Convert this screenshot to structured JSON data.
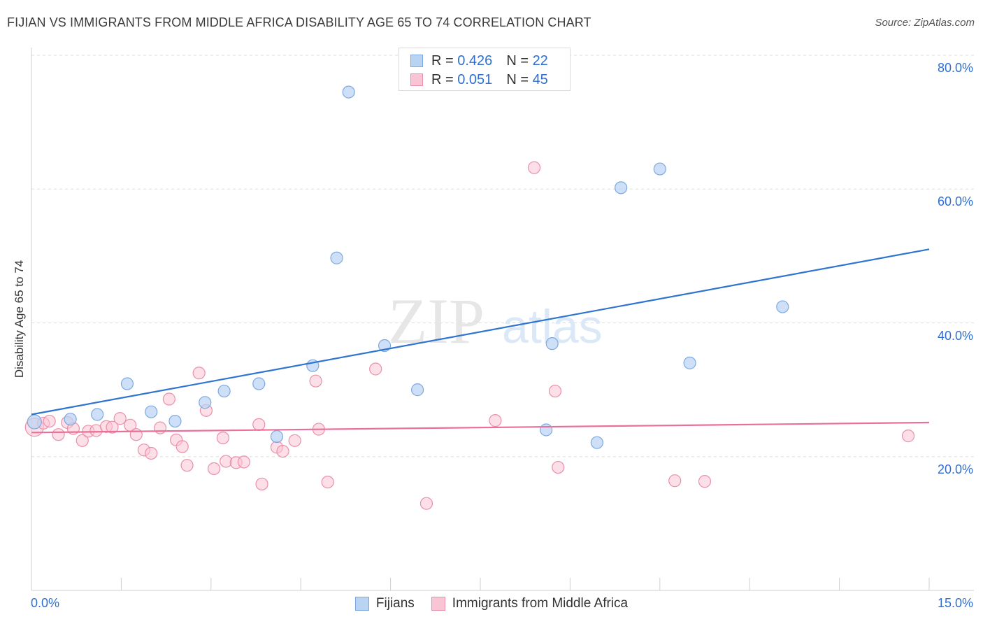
{
  "header": {
    "title": "FIJIAN VS IMMIGRANTS FROM MIDDLE AFRICA DISABILITY AGE 65 TO 74 CORRELATION CHART",
    "source": "Source: ZipAtlas.com"
  },
  "watermark": {
    "zip": "ZIP",
    "atlas": "atlas"
  },
  "legend_top": {
    "rows": [
      {
        "r_label": "R =",
        "r_value": "0.426",
        "n_label": "N =",
        "n_value": "22"
      },
      {
        "r_label": "R =",
        "r_value": "0.051",
        "n_label": "N =",
        "n_value": "45"
      }
    ]
  },
  "legend_bottom": {
    "items": [
      "Fijians",
      "Immigrants from Middle Africa"
    ]
  },
  "colors": {
    "series_a_fill": "#b9d3f3",
    "series_a_stroke": "#7ea8e0",
    "series_a_line": "#2f74d0",
    "series_b_fill": "#f9c4d4",
    "series_b_stroke": "#eb8fab",
    "series_b_line": "#e8709a",
    "accent_text": "#2f6fd0",
    "grid": "#dddddd"
  },
  "chart_data": {
    "type": "scatter",
    "title": "FIJIAN VS IMMIGRANTS FROM MIDDLE AFRICA DISABILITY AGE 65 TO 74 CORRELATION CHART",
    "xlabel": "",
    "ylabel": "Disability Age 65 to 74",
    "xlim": [
      0,
      15
    ],
    "ylim": [
      0,
      85
    ],
    "x_tick_labels": [
      "0.0%",
      "15.0%"
    ],
    "y_ticks": [
      20,
      40,
      60,
      80
    ],
    "y_tick_labels": [
      "20.0%",
      "40.0%",
      "60.0%",
      "80.0%"
    ],
    "grid": true,
    "legend_position": "top-center",
    "series": [
      {
        "name": "Fijians",
        "r": 0.426,
        "n": 22,
        "trend": [
          [
            0,
            26.3
          ],
          [
            15,
            51.0
          ]
        ],
        "points": [
          [
            0.05,
            25.2
          ],
          [
            0.65,
            25.6
          ],
          [
            1.1,
            26.3
          ],
          [
            1.6,
            30.9
          ],
          [
            2.0,
            26.7
          ],
          [
            2.4,
            25.3
          ],
          [
            2.9,
            28.1
          ],
          [
            3.22,
            29.8
          ],
          [
            3.8,
            30.9
          ],
          [
            4.1,
            23.0
          ],
          [
            4.7,
            33.6
          ],
          [
            5.1,
            49.7
          ],
          [
            5.3,
            74.5
          ],
          [
            5.9,
            36.6
          ],
          [
            6.45,
            30.0
          ],
          [
            8.6,
            24.0
          ],
          [
            8.7,
            36.9
          ],
          [
            9.45,
            22.1
          ],
          [
            9.85,
            60.2
          ],
          [
            10.5,
            63.0
          ],
          [
            11.0,
            34.0
          ],
          [
            12.55,
            42.4
          ]
        ]
      },
      {
        "name": "Immigrants from Middle Africa",
        "r": 0.051,
        "n": 45,
        "trend": [
          [
            0,
            23.6
          ],
          [
            15,
            25.1
          ]
        ],
        "points": [
          [
            0.05,
            24.4
          ],
          [
            0.2,
            25.0
          ],
          [
            0.3,
            25.3
          ],
          [
            0.45,
            23.3
          ],
          [
            0.6,
            25.1
          ],
          [
            0.7,
            24.2
          ],
          [
            0.85,
            22.4
          ],
          [
            0.95,
            23.8
          ],
          [
            1.08,
            23.9
          ],
          [
            1.25,
            24.5
          ],
          [
            1.35,
            24.4
          ],
          [
            1.48,
            25.7
          ],
          [
            1.65,
            24.7
          ],
          [
            1.75,
            23.3
          ],
          [
            1.88,
            21.0
          ],
          [
            2.0,
            20.5
          ],
          [
            2.15,
            24.3
          ],
          [
            2.3,
            28.6
          ],
          [
            2.42,
            22.5
          ],
          [
            2.52,
            21.5
          ],
          [
            2.6,
            18.7
          ],
          [
            2.8,
            32.5
          ],
          [
            2.92,
            26.9
          ],
          [
            3.05,
            18.2
          ],
          [
            3.2,
            22.8
          ],
          [
            3.25,
            19.3
          ],
          [
            3.42,
            19.1
          ],
          [
            3.55,
            19.2
          ],
          [
            3.8,
            24.8
          ],
          [
            3.85,
            15.9
          ],
          [
            4.1,
            21.4
          ],
          [
            4.2,
            20.8
          ],
          [
            4.4,
            22.4
          ],
          [
            4.75,
            31.3
          ],
          [
            4.8,
            24.1
          ],
          [
            4.95,
            16.2
          ],
          [
            5.75,
            33.1
          ],
          [
            6.6,
            13.0
          ],
          [
            7.75,
            25.4
          ],
          [
            8.4,
            63.2
          ],
          [
            8.75,
            29.8
          ],
          [
            8.8,
            18.4
          ],
          [
            10.75,
            16.4
          ],
          [
            11.25,
            16.3
          ],
          [
            14.65,
            23.1
          ]
        ]
      }
    ]
  }
}
